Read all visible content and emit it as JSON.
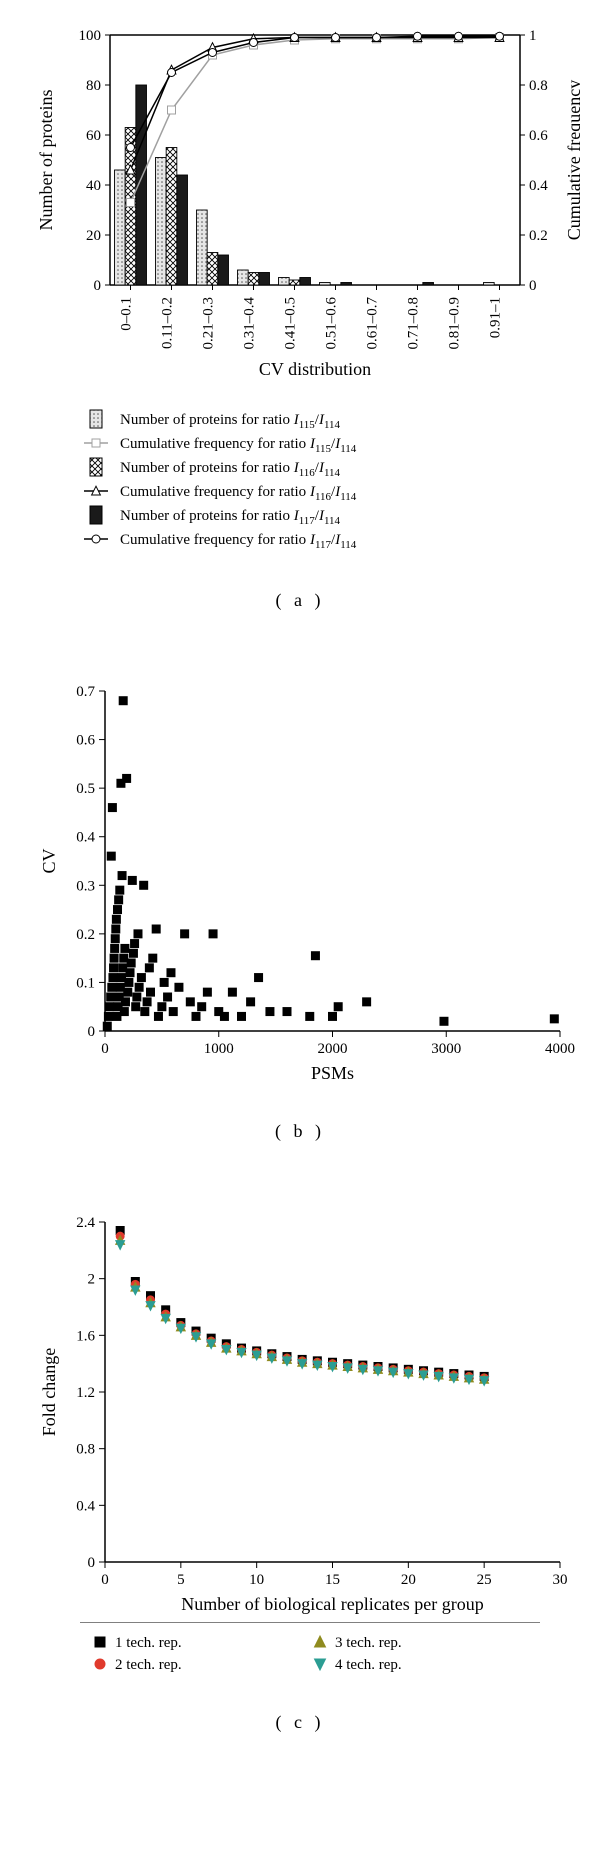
{
  "panelA": {
    "type": "bar+line",
    "categories": [
      "0–0.1",
      "0.11–0.2",
      "0.21–0.3",
      "0.31–0.4",
      "0.41–0.5",
      "0.51–0.6",
      "0.61–0.7",
      "0.71–0.8",
      "0.81–0.9",
      "0.91–1"
    ],
    "xlabel": "CV distribution",
    "ylabel_left": "Number of proteins",
    "ylabel_right": "Cumulative frequency",
    "ylim_left": [
      0,
      100
    ],
    "ytick_left_step": 20,
    "ylim_right": [
      0,
      1
    ],
    "ytick_right_step": 0.2,
    "series": {
      "bars115": {
        "label": "Number of proteins for ratio I₁₁₅/I₁₁₄",
        "values": [
          46,
          51,
          30,
          6,
          3,
          1,
          0,
          0,
          0,
          1
        ],
        "color": "#cccccc",
        "pattern": "dots"
      },
      "bars116": {
        "label": "Number of proteins for ratio I₁₁₆/I₁₁₄",
        "values": [
          63,
          55,
          13,
          5,
          2,
          0,
          0,
          0,
          0,
          0
        ],
        "color": "#eeeeee",
        "pattern": "crosshatch"
      },
      "bars117": {
        "label": "Number of proteins for ratio I₁₁₇/I₁₁₄",
        "values": [
          80,
          44,
          12,
          5,
          3,
          1,
          0,
          1,
          0,
          0
        ],
        "color": "#1a1a1a",
        "pattern": "none"
      },
      "cum115": {
        "label": "Cumulative frequency for ratio I₁₁₅/I₁₁₄",
        "values": [
          0.33,
          0.7,
          0.92,
          0.96,
          0.98,
          0.985,
          0.985,
          0.985,
          0.985,
          0.99
        ],
        "marker": "square",
        "color": "#a0a0a0"
      },
      "cum116": {
        "label": "Cumulative frequency for ratio I₁₁₆/I₁₁₄",
        "values": [
          0.46,
          0.86,
          0.95,
          0.985,
          0.99,
          0.99,
          0.99,
          0.99,
          0.99,
          0.99
        ],
        "marker": "triangle",
        "color": "#000000"
      },
      "cum117": {
        "label": "Cumulative frequency for ratio I₁₁₇/I₁₁₄",
        "values": [
          0.55,
          0.85,
          0.93,
          0.97,
          0.99,
          0.99,
          0.99,
          0.995,
          0.995,
          0.995
        ],
        "marker": "circle",
        "color": "#000000"
      }
    },
    "legend_items": [
      {
        "key": "bars115",
        "kind": "bar"
      },
      {
        "key": "cum115",
        "kind": "line"
      },
      {
        "key": "bars116",
        "kind": "bar"
      },
      {
        "key": "cum116",
        "kind": "line"
      },
      {
        "key": "bars117",
        "kind": "bar"
      },
      {
        "key": "cum117",
        "kind": "line"
      }
    ],
    "background_color": "#ffffff",
    "axis_color": "#000000"
  },
  "panelB": {
    "type": "scatter",
    "xlabel": "PSMs",
    "ylabel": "CV",
    "xlim": [
      0,
      4000
    ],
    "xtick_step": 1000,
    "ylim": [
      0,
      0.7
    ],
    "ytick_step": 0.1,
    "marker": "square",
    "marker_size": 4,
    "marker_color": "#000000",
    "points": [
      [
        20,
        0.01
      ],
      [
        30,
        0.03
      ],
      [
        40,
        0.05
      ],
      [
        50,
        0.07
      ],
      [
        55,
        0.36
      ],
      [
        60,
        0.09
      ],
      [
        65,
        0.46
      ],
      [
        70,
        0.11
      ],
      [
        75,
        0.13
      ],
      [
        80,
        0.15
      ],
      [
        85,
        0.17
      ],
      [
        90,
        0.19
      ],
      [
        95,
        0.21
      ],
      [
        100,
        0.23
      ],
      [
        105,
        0.03
      ],
      [
        110,
        0.25
      ],
      [
        115,
        0.05
      ],
      [
        120,
        0.27
      ],
      [
        125,
        0.07
      ],
      [
        130,
        0.29
      ],
      [
        135,
        0.09
      ],
      [
        140,
        0.51
      ],
      [
        145,
        0.11
      ],
      [
        150,
        0.32
      ],
      [
        155,
        0.13
      ],
      [
        160,
        0.68
      ],
      [
        165,
        0.15
      ],
      [
        170,
        0.04
      ],
      [
        175,
        0.17
      ],
      [
        180,
        0.06
      ],
      [
        190,
        0.52
      ],
      [
        200,
        0.08
      ],
      [
        210,
        0.1
      ],
      [
        220,
        0.12
      ],
      [
        230,
        0.14
      ],
      [
        240,
        0.31
      ],
      [
        250,
        0.16
      ],
      [
        260,
        0.18
      ],
      [
        270,
        0.05
      ],
      [
        280,
        0.07
      ],
      [
        290,
        0.2
      ],
      [
        300,
        0.09
      ],
      [
        320,
        0.11
      ],
      [
        340,
        0.3
      ],
      [
        350,
        0.04
      ],
      [
        370,
        0.06
      ],
      [
        390,
        0.13
      ],
      [
        400,
        0.08
      ],
      [
        420,
        0.15
      ],
      [
        450,
        0.21
      ],
      [
        470,
        0.03
      ],
      [
        500,
        0.05
      ],
      [
        520,
        0.1
      ],
      [
        550,
        0.07
      ],
      [
        580,
        0.12
      ],
      [
        600,
        0.04
      ],
      [
        650,
        0.09
      ],
      [
        700,
        0.2
      ],
      [
        750,
        0.06
      ],
      [
        800,
        0.03
      ],
      [
        850,
        0.05
      ],
      [
        900,
        0.08
      ],
      [
        950,
        0.2
      ],
      [
        1000,
        0.04
      ],
      [
        1050,
        0.03
      ],
      [
        1120,
        0.08
      ],
      [
        1200,
        0.03
      ],
      [
        1280,
        0.06
      ],
      [
        1350,
        0.11
      ],
      [
        1450,
        0.04
      ],
      [
        1600,
        0.04
      ],
      [
        1800,
        0.03
      ],
      [
        1850,
        0.155
      ],
      [
        2000,
        0.03
      ],
      [
        2050,
        0.05
      ],
      [
        2300,
        0.06
      ],
      [
        2980,
        0.02
      ],
      [
        3950,
        0.025
      ]
    ]
  },
  "panelC": {
    "type": "scatter-series",
    "xlabel": "Number of biological replicates per group",
    "ylabel": "Fold change",
    "xlim": [
      0,
      30
    ],
    "xticks": [
      0,
      5,
      10,
      15,
      20,
      25,
      30
    ],
    "ylim": [
      0,
      2.4
    ],
    "yticks": [
      0,
      0.4,
      0.8,
      1.2,
      1.6,
      2,
      2.4
    ],
    "x_values": [
      1,
      2,
      3,
      4,
      5,
      6,
      7,
      8,
      9,
      10,
      11,
      12,
      13,
      14,
      15,
      16,
      17,
      18,
      19,
      20,
      21,
      22,
      23,
      24,
      25
    ],
    "series": [
      {
        "label": "1 tech. rep.",
        "marker": "square",
        "color": "#000000",
        "values": [
          2.34,
          1.98,
          1.88,
          1.78,
          1.69,
          1.63,
          1.58,
          1.54,
          1.51,
          1.49,
          1.47,
          1.45,
          1.43,
          1.42,
          1.41,
          1.4,
          1.39,
          1.38,
          1.37,
          1.36,
          1.35,
          1.34,
          1.33,
          1.32,
          1.31
        ]
      },
      {
        "label": "2 tech. rep.",
        "marker": "circle",
        "color": "#e03a2d",
        "values": [
          2.3,
          1.96,
          1.85,
          1.75,
          1.67,
          1.61,
          1.56,
          1.52,
          1.5,
          1.48,
          1.46,
          1.44,
          1.42,
          1.41,
          1.4,
          1.39,
          1.38,
          1.37,
          1.36,
          1.35,
          1.34,
          1.33,
          1.32,
          1.31,
          1.3
        ]
      },
      {
        "label": "3 tech. rep.",
        "marker": "triangle-up",
        "color": "#8f8b1f",
        "values": [
          2.27,
          1.94,
          1.83,
          1.73,
          1.66,
          1.6,
          1.55,
          1.51,
          1.49,
          1.47,
          1.45,
          1.43,
          1.41,
          1.4,
          1.39,
          1.38,
          1.37,
          1.36,
          1.35,
          1.34,
          1.33,
          1.32,
          1.31,
          1.3,
          1.29
        ]
      },
      {
        "label": "4 tech. rep.",
        "marker": "triangle-down",
        "color": "#2b9d93",
        "values": [
          2.24,
          1.92,
          1.81,
          1.72,
          1.65,
          1.59,
          1.54,
          1.5,
          1.48,
          1.46,
          1.44,
          1.42,
          1.4,
          1.39,
          1.38,
          1.37,
          1.36,
          1.35,
          1.34,
          1.33,
          1.32,
          1.31,
          1.3,
          1.29,
          1.28
        ]
      }
    ],
    "legend_cols": 2
  },
  "labels": {
    "a": "( a )",
    "b": "( b )",
    "c": "( c )"
  }
}
